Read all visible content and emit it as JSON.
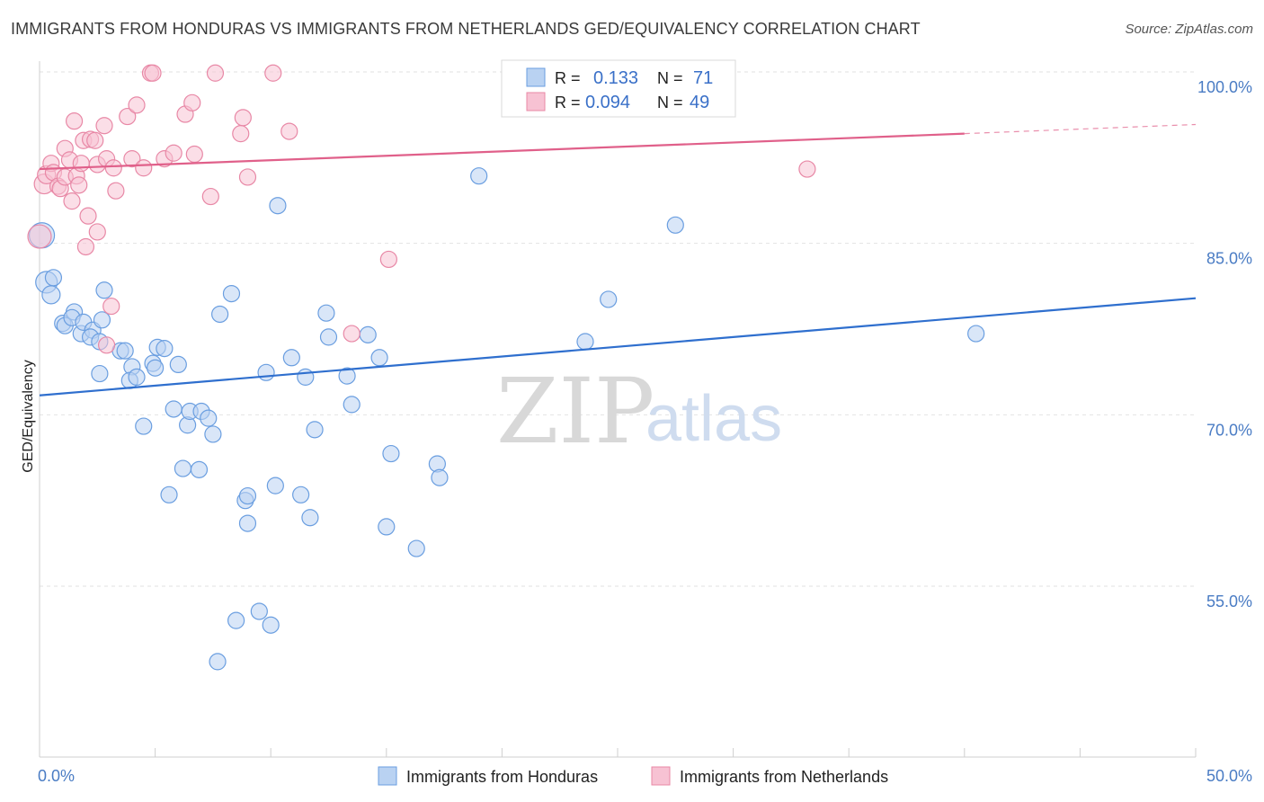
{
  "title": "IMMIGRANTS FROM HONDURAS VS IMMIGRANTS FROM NETHERLANDS GED/EQUIVALENCY CORRELATION CHART",
  "source": "Source: ZipAtlas.com",
  "watermark": {
    "zip": "ZIP",
    "atlas": "atlas"
  },
  "colors": {
    "blue": "#6a9ee0",
    "blue_fill": "#b9d2f2",
    "blue_line": "#2f6fce",
    "pink": "#e888a6",
    "pink_fill": "#f7c2d3",
    "pink_line": "#e0608a",
    "axis_text": "#4a7cc4"
  },
  "legend": {
    "rows": [
      {
        "r_label": "R =",
        "r_value": "0.133",
        "n_label": "N =",
        "n_value": "71"
      },
      {
        "r_label": "R =",
        "r_value": "0.094",
        "n_label": "N =",
        "n_value": "49"
      }
    ]
  },
  "bottom_legend": [
    "Immigrants from Honduras",
    "Immigrants from Netherlands"
  ],
  "chart_data": {
    "type": "scatter",
    "title": "IMMIGRANTS FROM HONDURAS VS IMMIGRANTS FROM NETHERLANDS GED/EQUIVALENCY CORRELATION CHART",
    "xlabel": "",
    "ylabel": "GED/Equivalency",
    "xlim": [
      0,
      50
    ],
    "ylim": [
      40,
      102
    ],
    "x_tick_labels": [
      "0.0%",
      "50.0%"
    ],
    "y_tick_labels": [
      "100.0%",
      "85.0%",
      "70.0%",
      "55.0%"
    ],
    "y_ticks": [
      100,
      85,
      70,
      55
    ],
    "grid": true,
    "legend_position": "top-center",
    "series": [
      {
        "name": "Immigrants from Honduras",
        "color": "#6a9ee0",
        "trend": {
          "x": [
            0,
            50
          ],
          "y": [
            71.7,
            80.2
          ],
          "dashed_from": null
        },
        "points": [
          [
            0.1,
            85.7,
            14
          ],
          [
            0.3,
            81.6,
            12
          ],
          [
            0.6,
            82.0,
            9
          ],
          [
            0.5,
            80.5,
            10
          ],
          [
            1.0,
            78.0,
            9
          ],
          [
            1.1,
            77.8,
            9
          ],
          [
            1.5,
            79.0,
            9
          ],
          [
            1.4,
            78.5,
            9
          ],
          [
            1.8,
            77.1,
            9
          ],
          [
            1.9,
            78.1,
            9
          ],
          [
            2.3,
            77.4,
            9
          ],
          [
            2.2,
            76.8,
            9
          ],
          [
            2.6,
            76.4,
            9
          ],
          [
            2.7,
            78.3,
            9
          ],
          [
            2.8,
            80.9,
            9
          ],
          [
            2.6,
            73.6,
            9
          ],
          [
            3.5,
            75.6,
            9
          ],
          [
            3.7,
            75.6,
            9
          ],
          [
            4.0,
            74.2,
            9
          ],
          [
            3.9,
            73.0,
            9
          ],
          [
            4.2,
            73.3,
            9
          ],
          [
            4.9,
            74.5,
            9
          ],
          [
            5.1,
            75.9,
            9
          ],
          [
            5.0,
            74.1,
            9
          ],
          [
            5.4,
            75.8,
            9
          ],
          [
            6.0,
            74.4,
            9
          ],
          [
            4.5,
            69.0,
            9
          ],
          [
            5.8,
            70.5,
            9
          ],
          [
            6.4,
            69.1,
            9
          ],
          [
            6.5,
            70.3,
            9
          ],
          [
            7.0,
            70.3,
            9
          ],
          [
            7.3,
            69.7,
            9
          ],
          [
            7.5,
            68.3,
            9
          ],
          [
            7.8,
            78.8,
            9
          ],
          [
            8.3,
            80.6,
            9
          ],
          [
            5.6,
            63.0,
            9
          ],
          [
            6.2,
            65.3,
            9
          ],
          [
            6.9,
            65.2,
            9
          ],
          [
            8.9,
            62.5,
            9
          ],
          [
            9.0,
            62.9,
            9
          ],
          [
            9.0,
            60.5,
            9
          ],
          [
            9.8,
            73.7,
            9
          ],
          [
            10.2,
            63.8,
            9
          ],
          [
            10.3,
            88.3,
            9
          ],
          [
            10.9,
            75.0,
            9
          ],
          [
            11.3,
            63.0,
            9
          ],
          [
            11.5,
            73.3,
            9
          ],
          [
            11.7,
            61.0,
            9
          ],
          [
            11.9,
            68.7,
            9
          ],
          [
            12.4,
            78.9,
            9
          ],
          [
            12.5,
            76.8,
            9
          ],
          [
            13.3,
            73.4,
            9
          ],
          [
            13.5,
            70.9,
            9
          ],
          [
            14.2,
            77.0,
            9
          ],
          [
            14.7,
            75.0,
            9
          ],
          [
            15.0,
            60.2,
            9
          ],
          [
            15.2,
            66.6,
            9
          ],
          [
            16.3,
            58.3,
            9
          ],
          [
            17.2,
            65.7,
            9
          ],
          [
            17.3,
            64.5,
            9
          ],
          [
            19.0,
            90.9,
            9
          ],
          [
            23.6,
            76.4,
            9
          ],
          [
            24.6,
            80.1,
            9
          ],
          [
            26.0,
            99.8,
            9
          ],
          [
            27.5,
            86.6,
            9
          ],
          [
            28.7,
            99.8,
            9
          ],
          [
            40.5,
            77.1,
            9
          ],
          [
            8.5,
            52.0,
            9
          ],
          [
            9.5,
            52.8,
            9
          ],
          [
            10.0,
            51.6,
            9
          ],
          [
            7.7,
            48.4,
            9
          ]
        ]
      },
      {
        "name": "Immigrants from Netherlands",
        "color": "#e888a6",
        "trend": {
          "x": [
            0,
            40
          ],
          "y": [
            91.5,
            94.6
          ],
          "dashed_from": 40,
          "dashed_to": 50,
          "dashed_to_y": 95.4
        },
        "points": [
          [
            0.0,
            85.6,
            13
          ],
          [
            0.2,
            90.2,
            11
          ],
          [
            0.3,
            91.0,
            10
          ],
          [
            0.5,
            92.0,
            9
          ],
          [
            0.6,
            91.2,
            9
          ],
          [
            0.8,
            90.0,
            9
          ],
          [
            0.9,
            89.8,
            9
          ],
          [
            1.1,
            90.8,
            9
          ],
          [
            1.1,
            93.3,
            9
          ],
          [
            1.3,
            92.3,
            9
          ],
          [
            1.4,
            88.7,
            9
          ],
          [
            1.5,
            95.7,
            9
          ],
          [
            1.6,
            90.9,
            9
          ],
          [
            1.8,
            92.0,
            9
          ],
          [
            1.9,
            94.0,
            9
          ],
          [
            2.0,
            84.7,
            9
          ],
          [
            2.1,
            87.4,
            9
          ],
          [
            2.2,
            94.1,
            9
          ],
          [
            2.4,
            94.0,
            9
          ],
          [
            2.5,
            91.9,
            9
          ],
          [
            2.5,
            86.0,
            9
          ],
          [
            2.8,
            95.3,
            9
          ],
          [
            2.9,
            92.4,
            9
          ],
          [
            3.1,
            79.5,
            9
          ],
          [
            3.2,
            91.6,
            9
          ],
          [
            3.3,
            89.6,
            9
          ],
          [
            3.8,
            96.1,
            9
          ],
          [
            4.0,
            92.4,
            9
          ],
          [
            4.2,
            97.1,
            9
          ],
          [
            4.5,
            91.6,
            9
          ],
          [
            4.8,
            99.9,
            9
          ],
          [
            4.9,
            99.9,
            9
          ],
          [
            5.4,
            92.4,
            9
          ],
          [
            5.8,
            92.9,
            9
          ],
          [
            6.3,
            96.3,
            9
          ],
          [
            6.6,
            97.3,
            9
          ],
          [
            6.7,
            92.8,
            9
          ],
          [
            7.4,
            89.1,
            9
          ],
          [
            7.6,
            99.9,
            9
          ],
          [
            8.7,
            94.6,
            9
          ],
          [
            8.8,
            96.0,
            9
          ],
          [
            9.0,
            90.8,
            9
          ],
          [
            10.1,
            99.9,
            9
          ],
          [
            10.8,
            94.8,
            9
          ],
          [
            13.5,
            77.1,
            9
          ],
          [
            15.1,
            83.6,
            9
          ],
          [
            33.2,
            91.5,
            9
          ],
          [
            2.9,
            76.1,
            9
          ],
          [
            1.7,
            90.1,
            9
          ]
        ]
      }
    ]
  }
}
